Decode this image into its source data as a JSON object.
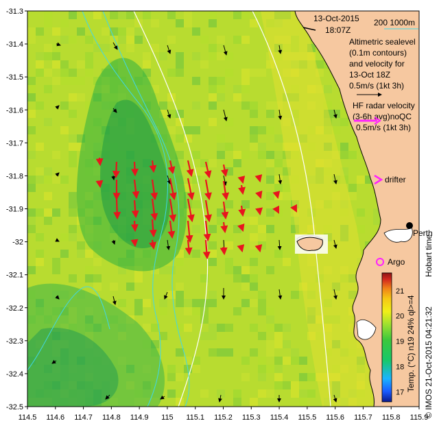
{
  "header": {
    "date": "13-Oct-2015",
    "time": "18:07Z"
  },
  "legend": {
    "isobath_label": "200  1000m",
    "altimetry_line1": "Altimetric sealevel",
    "altimetry_line2": "(0.1m contours)",
    "altimetry_line3": "and velocity for",
    "altimetry_line4": "13-Oct 18Z",
    "altimetry_line5": "0.5m/s (1kt 3h)",
    "radar_line1": "HF radar velocity",
    "radar_line2": "(3-6h avg)noQC",
    "radar_line3": "0.5m/s (1kt 3h)",
    "drifter_label": "drifter",
    "argo_label": "Argo",
    "place_label": "Perth",
    "hobart_label": "Hobart time",
    "credit": "© IMOS 21-Oct-2015 04:21:32",
    "colorbar_title": "Temp. (°C) n19 24% ql>=4"
  },
  "colors": {
    "land": "#f6c8a0",
    "radar_arrow": "#e8141e",
    "drifter": "#ff20ff",
    "isobath": "#40d8e8",
    "ssh_contour": "#ffffff"
  },
  "axes": {
    "x_ticks": [
      "114.5",
      "114.6",
      "114.7",
      "114.8",
      "114.9",
      "115",
      "115.1",
      "115.2",
      "115.3",
      "115.4",
      "115.5",
      "115.6",
      "115.7",
      "115.8",
      "115.9"
    ],
    "y_ticks": [
      "-31.3",
      "-31.4",
      "-31.5",
      "-31.6",
      "-31.7",
      "-31.8",
      "-31.9",
      "-32",
      "-32.1",
      "-32.2",
      "-32.3",
      "-32.4",
      "-32.5"
    ],
    "xlim": [
      114.5,
      115.9
    ],
    "ylim": [
      -32.5,
      -31.3
    ]
  },
  "colorbar": {
    "ticks": [
      "21",
      "20",
      "19",
      "18",
      "17"
    ],
    "range": [
      16.6,
      21.7
    ],
    "colors": [
      "#0a1a8c",
      "#1a5aff",
      "#1ab4ff",
      "#18c86a",
      "#3cc83c",
      "#9ee030",
      "#f0f018",
      "#f6c814",
      "#f08218",
      "#d2281e",
      "#8c1414"
    ]
  }
}
